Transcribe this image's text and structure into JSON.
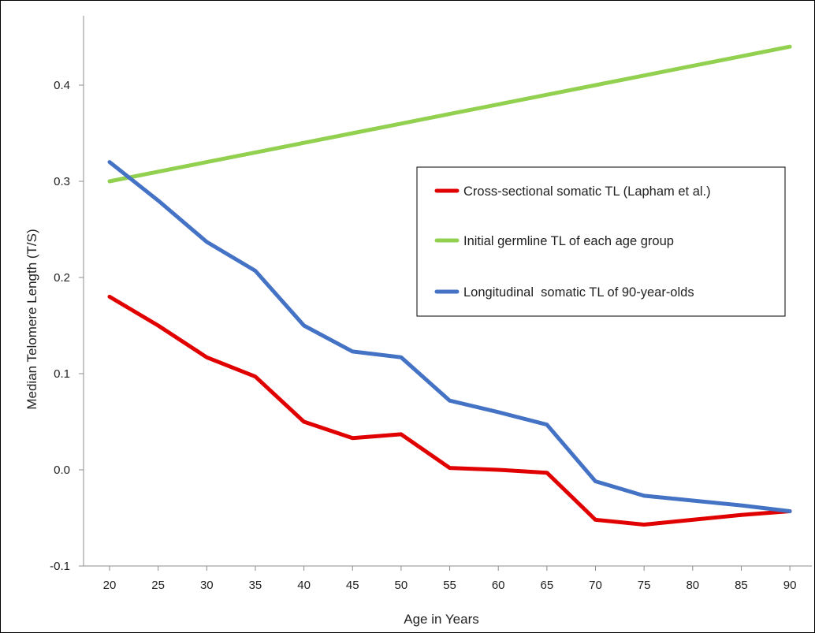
{
  "chart_data": {
    "type": "line",
    "title": "",
    "xlabel": "Age in Years",
    "ylabel": "Median Telomere Length (T/S)",
    "x": [
      20,
      25,
      30,
      35,
      40,
      45,
      50,
      55,
      60,
      65,
      70,
      75,
      80,
      85,
      90
    ],
    "x_tick_labels": [
      "20",
      "25",
      "30",
      "35",
      "40",
      "45",
      "50",
      "55",
      "60",
      "65",
      "70",
      "75",
      "80",
      "85",
      "90"
    ],
    "y_ticks": [
      -0.1,
      0.0,
      0.1,
      0.2,
      0.3,
      0.4
    ],
    "y_tick_labels": [
      "-0.1",
      "0.0",
      "0.1",
      "0.2",
      "0.3",
      "0.4"
    ],
    "ylim": [
      -0.1,
      0.45
    ],
    "grid": false,
    "legend_position": "right",
    "series": [
      {
        "name": "Cross-sectional somatic TL (Lapham et al.)",
        "color": "#e00000",
        "values": [
          0.18,
          0.15,
          0.117,
          0.097,
          0.05,
          0.033,
          0.037,
          0.002,
          0.0,
          -0.003,
          -0.052,
          -0.057,
          -0.052,
          -0.047,
          -0.043
        ]
      },
      {
        "name": "Initial germline TL of each age group",
        "color": "#92d050",
        "values": [
          0.3,
          0.31,
          0.32,
          0.33,
          0.34,
          0.35,
          0.36,
          0.37,
          0.38,
          0.39,
          0.4,
          0.41,
          0.42,
          0.43,
          0.44
        ]
      },
      {
        "name": "Longitudinal  somatic TL of 90-year-olds",
        "color": "#4472c4",
        "values": [
          0.32,
          0.28,
          0.237,
          0.207,
          0.15,
          0.123,
          0.117,
          0.072,
          0.06,
          0.047,
          -0.012,
          -0.027,
          -0.032,
          -0.037,
          -0.043
        ]
      }
    ]
  }
}
